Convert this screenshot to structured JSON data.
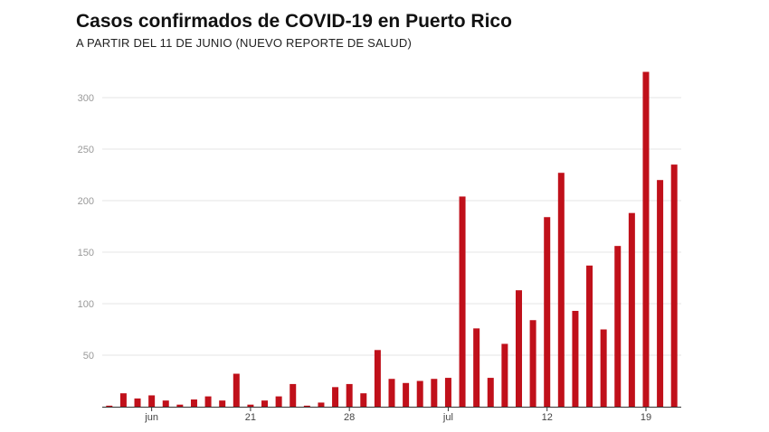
{
  "title": "Casos confirmados de COVID-19 en Puerto Rico",
  "subtitle": "A PARTIR DEL 11 DE JUNIO (NUEVO REPORTE DE SALUD)",
  "colors": {
    "bar": "#c0101a",
    "grid": "#e6e6e6",
    "axis": "#333333"
  },
  "chart_data": {
    "type": "bar",
    "title": "Casos confirmados de COVID-19 en Puerto Rico",
    "subtitle": "A PARTIR DEL 11 DE JUNIO (NUEVO REPORTE DE SALUD)",
    "xlabel": "",
    "ylabel": "",
    "ylim": [
      0,
      330
    ],
    "yticks": [
      50,
      100,
      150,
      200,
      250,
      300
    ],
    "grid": true,
    "x_tick_labels": [
      {
        "label": "jun",
        "index": 3
      },
      {
        "label": "21",
        "index": 10
      },
      {
        "label": "28",
        "index": 17
      },
      {
        "label": "jul",
        "index": 24
      },
      {
        "label": "12",
        "index": 31
      },
      {
        "label": "19",
        "index": 38
      }
    ],
    "values": [
      1,
      13,
      8,
      11,
      6,
      2,
      7,
      10,
      6,
      32,
      2,
      6,
      10,
      22,
      1,
      4,
      19,
      22,
      13,
      55,
      27,
      23,
      25,
      27,
      28,
      204,
      76,
      28,
      61,
      113,
      84,
      184,
      227,
      93,
      137,
      75,
      156,
      188,
      325,
      220,
      235
    ]
  }
}
